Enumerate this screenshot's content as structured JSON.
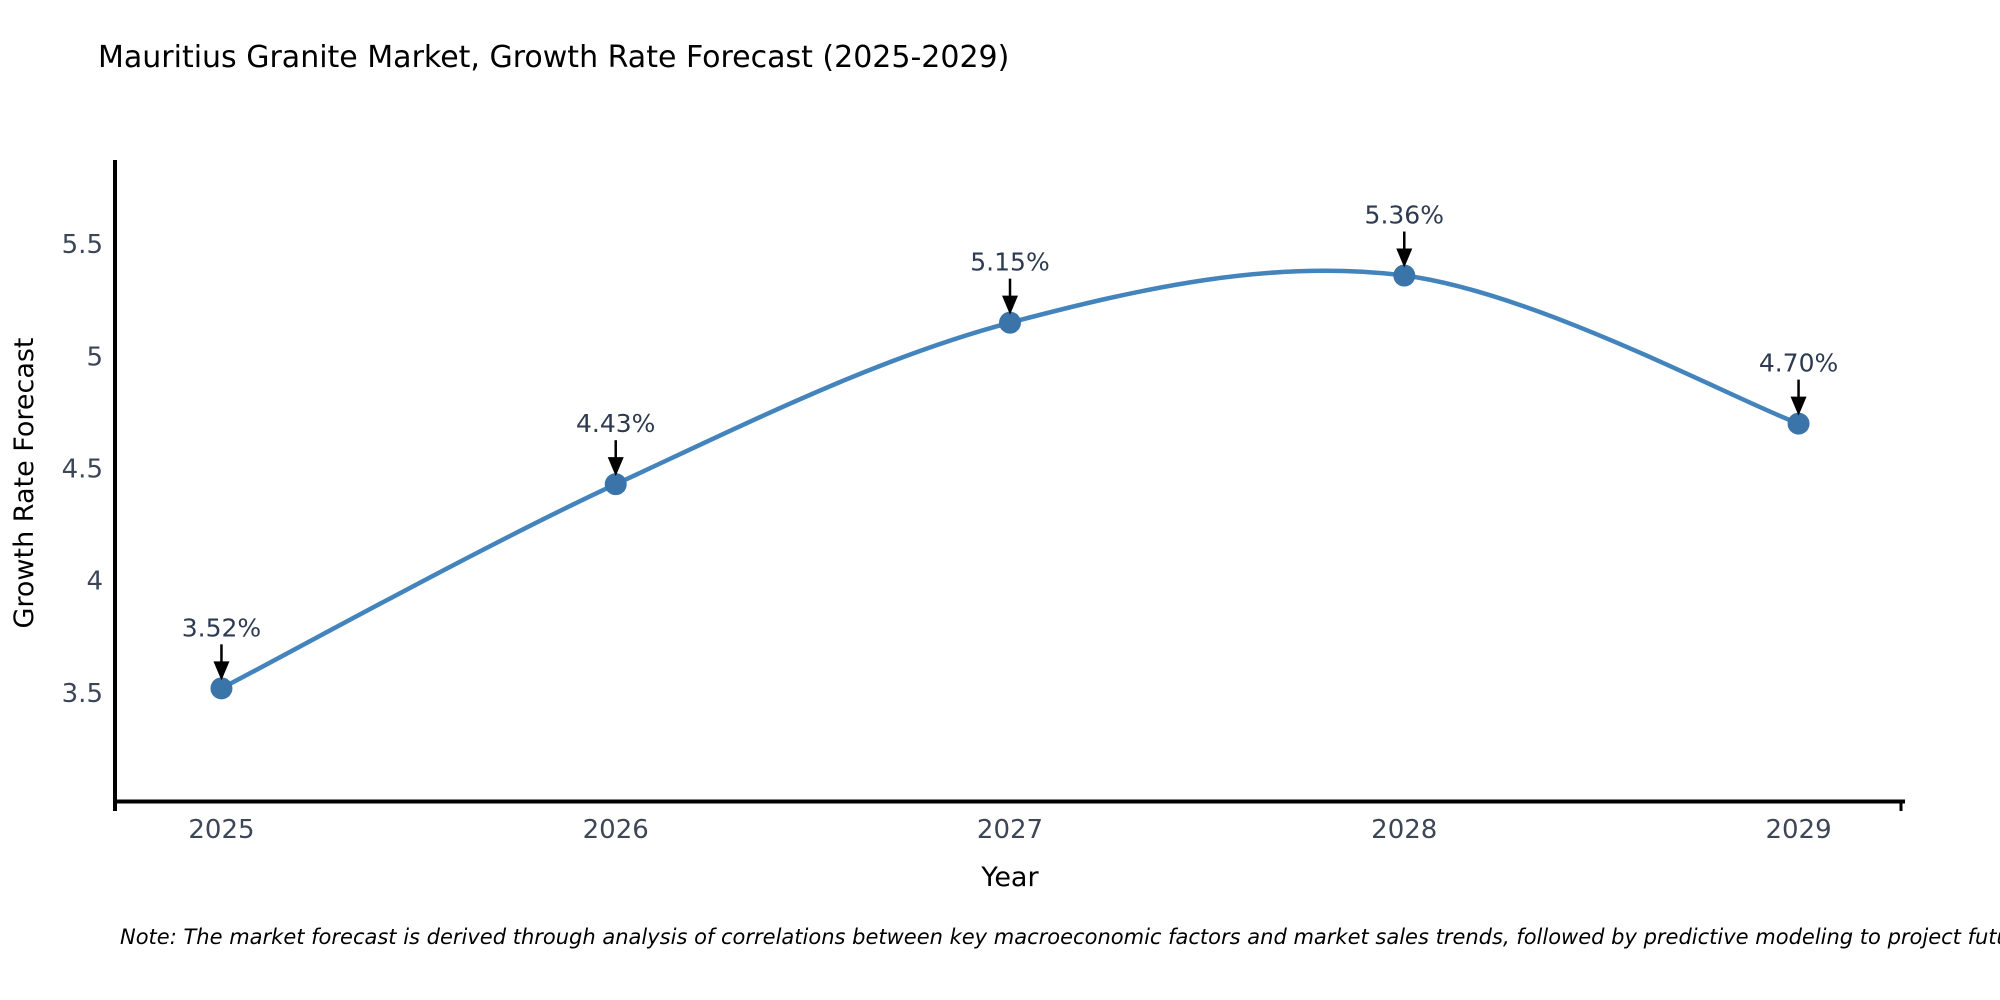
{
  "page": {
    "background": "#ffffff"
  },
  "chart_data": {
    "type": "line",
    "title": "Mauritius Granite Market, Growth Rate Forecast (2025-2029)",
    "xlabel": "Year",
    "ylabel": "Growth Rate Forecast",
    "x": [
      2025,
      2026,
      2027,
      2028,
      2029
    ],
    "values": [
      3.52,
      4.43,
      5.15,
      5.36,
      4.7
    ],
    "point_labels": [
      "3.52%",
      "4.43%",
      "5.15%",
      "5.36%",
      "4.70%"
    ],
    "x_tick_labels": [
      "2025",
      "2026",
      "2027",
      "2028",
      "2029"
    ],
    "y_ticks": [
      3.5,
      4,
      4.5,
      5,
      5.5
    ],
    "y_tick_labels": [
      "3.5",
      "4",
      "4.5",
      "5",
      "5.5"
    ],
    "xlim": [
      2024.73,
      2029.27
    ],
    "ylim": [
      3.0,
      5.875
    ],
    "grid": false,
    "legend_position": "none",
    "curve_style": "spline",
    "annotation_style": "arrow-down-to-point"
  },
  "note": {
    "text": "Note: The market forecast is derived through analysis of correlations between key macroeconomic factors and market sales trends, followed by predictive modeling to project future sales"
  },
  "colors": {
    "title_text": "#2b3a55",
    "tick_text": "#3d4657",
    "axis_title_text": "#3d4657",
    "annotation_text": "#2e3a50",
    "note_text": "#15171c",
    "axis_line": "#000000",
    "series_line": "#4384bd",
    "series_marker": "#3a74a8",
    "arrow": "#000000"
  }
}
